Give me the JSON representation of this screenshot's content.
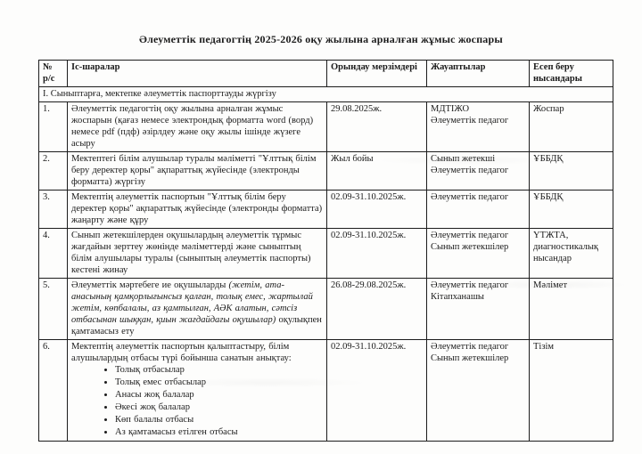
{
  "page": {
    "title": "Әлеуметтік педагогтің 2025-2026 оқу жылына арналған жұмыс жоспары"
  },
  "table": {
    "headers": {
      "num_line1": "№",
      "num_line2": "р/с",
      "activities": "Іс-шаралар",
      "deadline": "Орындау мерзімдері",
      "responsible": "Жауаптылар",
      "report": "Есеп беру нысандары"
    },
    "section_title": "І. Сыныптарға, мектепке әлеуметтік паспорттауды жүргізу",
    "rows": [
      {
        "num": "1.",
        "activity": "Әлеуметтік педагогтің оқу жылына арналған жұмыс жоспарын (қағаз немесе электрондық форматта word (ворд) немесе pdf (пдф) әзірлдеу және оқу жылы ішінде жүзеге асыру",
        "deadline": "29.08.2025ж.",
        "responsible": [
          "МДТІЖО",
          "Әлеуметтік педагог"
        ],
        "report": "Жоспар"
      },
      {
        "num": "2.",
        "activity": "Мектептегі білім алушылар туралы мәліметті \"Ұлттық білім беру деректер қоры\" ақпараттық жүйесінде (электронды форматта) жүргізу",
        "deadline": "Жыл бойы",
        "responsible": [
          "Сынып жетекші",
          "Әлеуметтік педагог"
        ],
        "report": "ҰББДҚ"
      },
      {
        "num": "3.",
        "activity": "Мектептің әлеуметтік паспортын \"Ұлттық білім беру деректер қоры\" ақпараттық жүйесінде (электронды форматта) жаңарту және құру",
        "deadline": "02.09-31.10.2025ж.",
        "responsible": [
          "Әлеуметтік педагог"
        ],
        "report": "ҰББДҚ"
      },
      {
        "num": "4.",
        "activity": "Сынып жетекшілерден оқушылардың әлеуметтік тұрмыс жағдайын зерттеу жөнінде мәліметтерді және сыныптың білім алушылары туралы (сыныптың әлеуметтік паспорты) кестені жинау",
        "deadline": "02.09-31.10.2025ж.",
        "responsible": [
          "Әлеуметтік педагог",
          "Сынып жетекшілер"
        ],
        "report": "ҮТЖТА, диагностикалық нысандар"
      },
      {
        "num": "5.",
        "activity_pre": "Әлеуметтік мәртебеге ие оқушыларды ",
        "activity_italic": "(жетім, ата-анасының қамқорлығынсыз қалған, толық емес, жартылай жетім, көпбалалы, аз қамтылған, АӘК алатын, сәтсіз отбасынан шыққан, қиын жағдайдағы оқушылар)",
        "activity_post": " оқулықпен қамтамасыз ету",
        "deadline": "26.08-29.08.2025ж.",
        "responsible": [
          "Әлеуметтік педагог",
          "Кітапханашы"
        ],
        "report": "Мәлімет"
      },
      {
        "num": "6.",
        "activity": "Мектептің әлеуметтік паспортын қалыптастыру, білім алушылардың отбасы түрі бойынша санатын анықтау:",
        "bullets": [
          "Толық отбасылар",
          "Толық емес отбасылар",
          "Анасы жоқ балалар",
          "Әкесі жоқ балалар",
          "Көп балалы отбасы",
          "Аз қамтамасыз етілген отбасы"
        ],
        "deadline": "02.09-31.10.2025ж.",
        "responsible": [
          "Әлеуметтік педагог",
          "Сынып жетекшілер"
        ],
        "report": "Тізім"
      }
    ]
  }
}
